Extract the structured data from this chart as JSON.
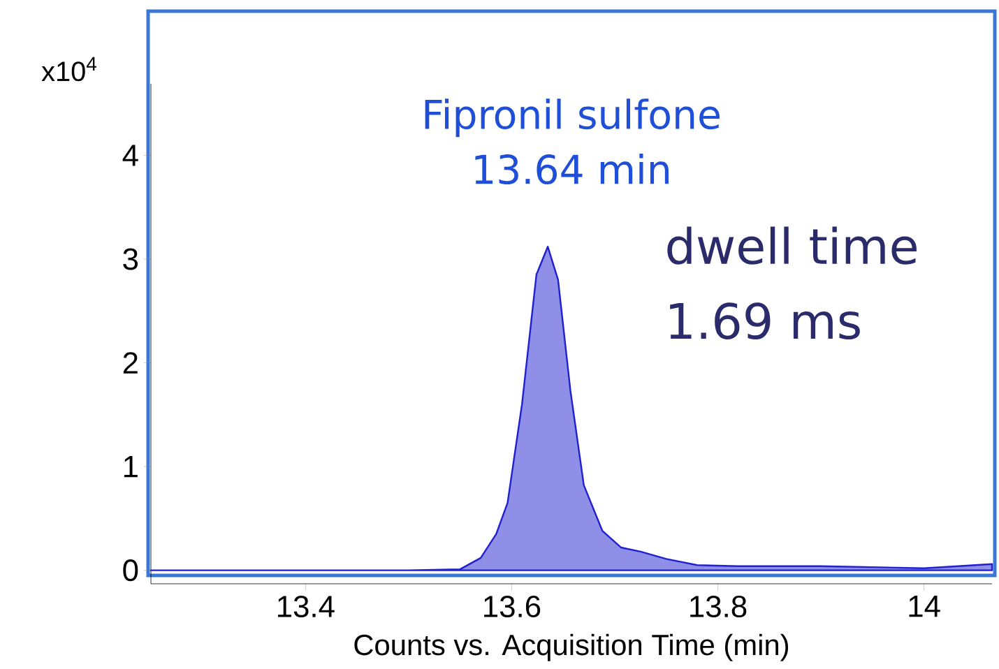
{
  "chart_data": {
    "type": "area",
    "title": "Fipronil sulfone",
    "subtitle": "13.64 min",
    "ylabel": "x10$^{4}$",
    "xlabel": "Counts vs. Acquisition Time (min)",
    "annotations": [
      "dwell time",
      "1.69 ms"
    ],
    "x": [
      13.25,
      13.4,
      13.5,
      13.55,
      13.57,
      13.585,
      13.596,
      13.61,
      13.624,
      13.635,
      13.645,
      13.657,
      13.67,
      13.688,
      13.706,
      13.725,
      13.75,
      13.78,
      13.82,
      13.9,
      14.0,
      14.066
    ],
    "series": [
      {
        "color": "#2020d0",
        "values": [
          0,
          0,
          0,
          0.01,
          0.12,
          0.35,
          0.65,
          1.6,
          2.85,
          3.12,
          2.8,
          1.73,
          0.82,
          0.38,
          0.22,
          0.18,
          0.11,
          0.05,
          0.04,
          0.04,
          0.02,
          0.06
        ]
      }
    ],
    "xlim": [
      13.25,
      14.066
    ],
    "ylim": [
      -0.13,
      4.69
    ],
    "xticks": [
      13.4,
      13.6,
      13.8,
      14
    ],
    "yticks": [
      0,
      1,
      2,
      3,
      4
    ]
  }
}
